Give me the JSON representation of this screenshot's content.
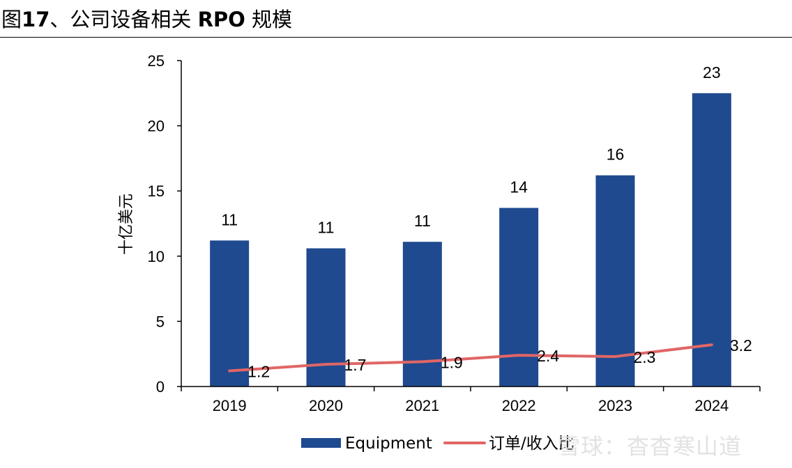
{
  "header": {
    "title_prefix": "图",
    "title_number": "17",
    "title_mid": "、公司设备相关 ",
    "title_bold": "RPO",
    "title_suffix": " 规模"
  },
  "watermark": "雪球：杳杳寒山道",
  "colors": {
    "bar": "#1f4a8f",
    "line": "#e06666"
  },
  "chart_data": {
    "type": "bar",
    "categories": [
      "2019",
      "2020",
      "2021",
      "2022",
      "2023",
      "2024"
    ],
    "series": [
      {
        "name": "Equipment",
        "kind": "bar",
        "values": [
          11.2,
          10.6,
          11.1,
          13.7,
          16.2,
          22.5
        ],
        "labels": [
          "11",
          "11",
          "11",
          "14",
          "16",
          "23"
        ]
      },
      {
        "name": "订单/收入比",
        "kind": "line",
        "values": [
          1.2,
          1.7,
          1.9,
          2.4,
          2.3,
          3.2
        ],
        "labels": [
          "1.2",
          "1.7",
          "1.9",
          "2.4",
          "2.3",
          "3.2"
        ]
      }
    ],
    "ylabel": "十亿美元",
    "ylim": [
      0,
      25
    ],
    "yticks": [
      0,
      5,
      10,
      15,
      20,
      25
    ],
    "legend_position": "bottom-center",
    "grid": false
  }
}
